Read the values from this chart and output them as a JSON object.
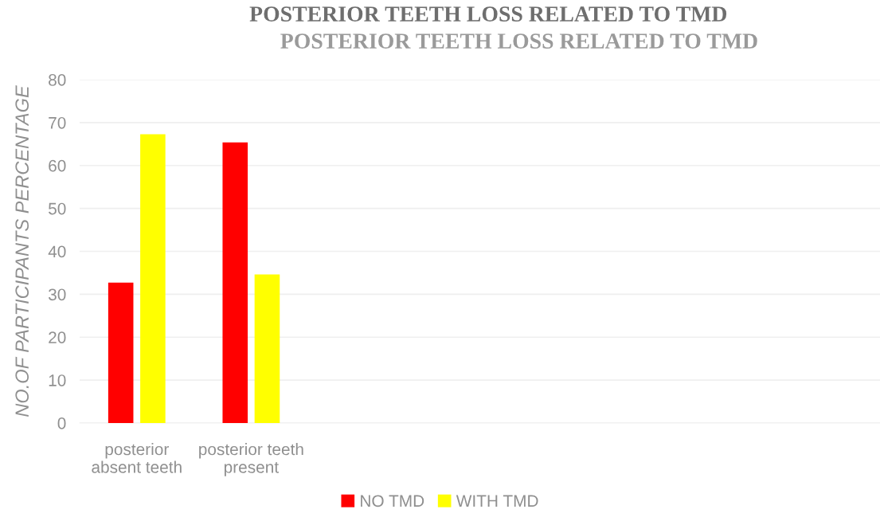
{
  "chart_data": {
    "type": "bar",
    "title": "POSTERIOR TEETH LOSS RELATED TO TMD",
    "subtitle": "POSTERIOR TEETH LOSS RELATED TO TMD",
    "ylabel": "NO.OF PARTICIPANTS PERCENTAGE",
    "categories": [
      "posterior\nabsent teeth",
      "posterior teeth\npresent",
      null,
      null,
      null,
      null,
      null
    ],
    "series": [
      {
        "name": "NO TMD",
        "color": "#ff0000",
        "values": [
          32.7,
          65.4,
          null,
          null,
          null,
          null,
          null
        ]
      },
      {
        "name": "WITH TMD",
        "color": "#ffff00",
        "values": [
          67.3,
          34.6,
          null,
          null,
          null,
          null,
          null
        ]
      }
    ],
    "ylim": [
      0,
      80
    ],
    "yticks": [
      0,
      10,
      20,
      30,
      40,
      50,
      60,
      70,
      80
    ],
    "grid": "y",
    "legend": "bottom"
  }
}
